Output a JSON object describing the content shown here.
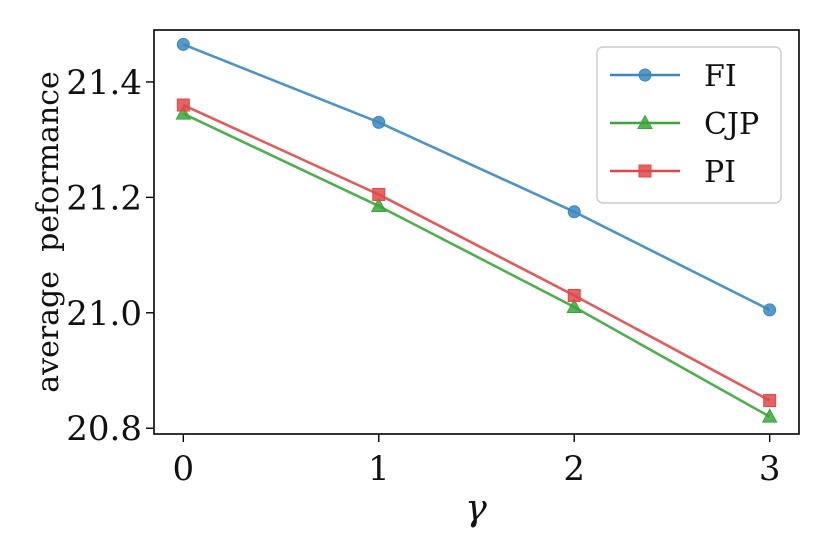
{
  "chart_data": {
    "type": "line",
    "xlabel": "γ",
    "ylabel": "average  peformance",
    "x": [
      0,
      1,
      2,
      3
    ],
    "xticks": [
      "0",
      "1",
      "2",
      "3"
    ],
    "yticks": [
      "20.8",
      "21.0",
      "21.2",
      "21.4"
    ],
    "xlim": [
      -0.15,
      3.15
    ],
    "ylim": [
      20.79,
      21.49
    ],
    "grid": false,
    "legend_position": "top-right",
    "series": [
      {
        "name": "FI",
        "values": [
          21.465,
          21.33,
          21.175,
          21.005
        ],
        "color": "#3a87c0",
        "marker": "circle"
      },
      {
        "name": "CJP",
        "values": [
          21.345,
          21.185,
          21.01,
          20.82
        ],
        "color": "#3aa63a",
        "marker": "triangle"
      },
      {
        "name": "PI",
        "values": [
          21.36,
          21.205,
          21.03,
          20.848
        ],
        "color": "#e04848",
        "marker": "square"
      }
    ]
  }
}
